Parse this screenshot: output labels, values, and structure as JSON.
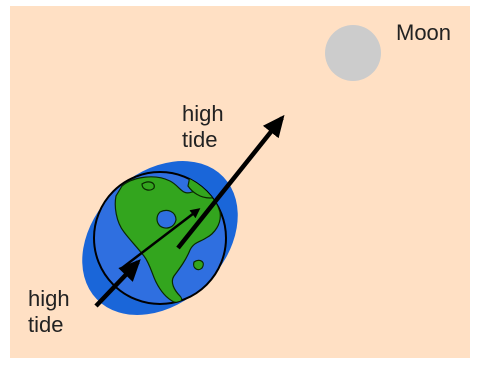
{
  "labels": {
    "moon": "Moon",
    "high_tide_upper": "high\ntide",
    "high_tide_lower": "high\ntide"
  },
  "colors": {
    "background": "#ffe0c4",
    "moon": "#cccccc",
    "ocean_bulge": "#1a66d9",
    "earth_ocean": "#2f6fe0",
    "land": "#33a51e",
    "arrow": "#000000"
  },
  "icons": {
    "earth": "earth-globe-icon",
    "moon": "moon-circle-icon"
  }
}
